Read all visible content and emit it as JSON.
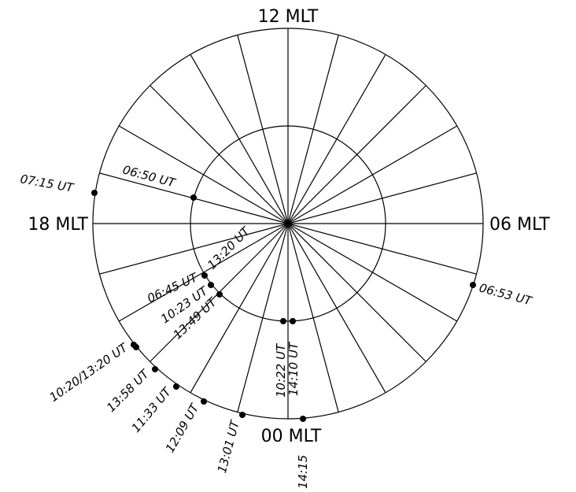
{
  "axis_labels": {
    "top": "12 MLT",
    "right": "06 MLT",
    "bottom": "00 MLT",
    "left": "18 MLT"
  },
  "points": [
    {
      "label": "07:15 UT"
    },
    {
      "label": "06:50 UT"
    },
    {
      "label": "06:53 UT"
    },
    {
      "label": "13:20 UT"
    },
    {
      "label": "06:45 UT"
    },
    {
      "label": "10:23 UT"
    },
    {
      "label": "13:49 UT"
    },
    {
      "label": "10:22 UT"
    },
    {
      "label": "14:10 UT"
    },
    {
      "label": "10:20/13:20 UT"
    },
    {
      "label": "13:58 UT"
    },
    {
      "label": "11:33 UT"
    },
    {
      "label": "12:09 UT"
    },
    {
      "label": "13:01 UT"
    },
    {
      "label": "14:15"
    }
  ]
}
